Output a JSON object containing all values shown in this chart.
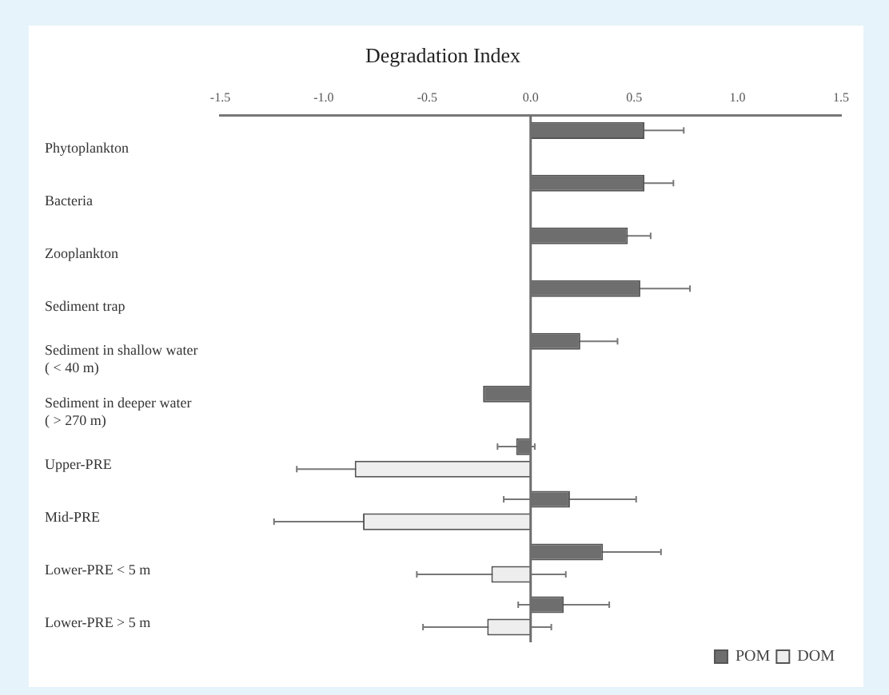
{
  "chart_data": {
    "type": "bar",
    "orientation": "horizontal",
    "title": "Degradation Index",
    "categories": [
      "Phytoplankton",
      "Bacteria",
      "Zooplankton",
      "Sediment trap",
      "Sediment in shallow water\n( < 40 m)",
      "Sediment in deeper water\n( > 270 m)",
      "Upper-PRE",
      "Mid-PRE",
      "Lower-PRE < 5 m",
      "Lower-PRE > 5 m"
    ],
    "series": [
      {
        "name": "POM",
        "color": "#6e6e6e",
        "values": [
          0.55,
          0.55,
          0.47,
          0.53,
          0.24,
          -0.23,
          -0.07,
          0.19,
          0.35,
          0.16
        ],
        "errors": [
          0.19,
          0.14,
          0.11,
          0.24,
          0.18,
          null,
          0.09,
          0.32,
          0.28,
          0.22
        ]
      },
      {
        "name": "DOM",
        "color": "#eeeeee",
        "values": [
          null,
          null,
          null,
          null,
          null,
          null,
          -0.85,
          -0.81,
          -0.19,
          -0.21
        ],
        "errors": [
          null,
          null,
          null,
          null,
          null,
          null,
          0.28,
          0.43,
          0.36,
          0.31
        ]
      }
    ],
    "xlim": [
      -1.5,
      1.5
    ],
    "xticks": [
      {
        "value": -1.5,
        "label": "-1.5"
      },
      {
        "value": -1.0,
        "label": "-1.0"
      },
      {
        "value": -0.5,
        "label": "-0.5"
      },
      {
        "value": 0,
        "label": "0.0"
      },
      {
        "value": 0.5,
        "label": "0.5"
      },
      {
        "value": 1.0,
        "label": "1.0"
      },
      {
        "value": 1.5,
        "label": "1.5"
      }
    ],
    "ref_lines": [
      {
        "axis": "x",
        "value": 0,
        "color": "#6e6e6e"
      }
    ],
    "grid": false,
    "legend": "bottom right"
  }
}
